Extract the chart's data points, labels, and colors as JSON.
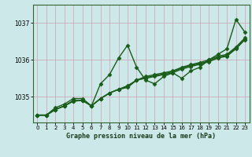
{
  "title": "Graphe pression niveau de la mer (hPa)",
  "bg_color": "#cce8e8",
  "grid_color": "#d0a0b0",
  "line_color": "#1a5c1a",
  "marker": "D",
  "markersize": 2.5,
  "linewidth": 1.0,
  "xlim": [
    -0.5,
    23.5
  ],
  "ylim": [
    1034.3,
    1037.5
  ],
  "yticks": [
    1035,
    1036,
    1037
  ],
  "xticks": [
    0,
    1,
    2,
    3,
    4,
    5,
    6,
    7,
    8,
    9,
    10,
    11,
    12,
    13,
    14,
    15,
    16,
    17,
    18,
    19,
    20,
    21,
    22,
    23
  ],
  "series": [
    [
      1034.5,
      1034.5,
      1034.7,
      1034.8,
      1034.95,
      1034.95,
      1034.75,
      1035.35,
      1035.6,
      1036.05,
      1036.4,
      1035.8,
      1035.45,
      1035.35,
      1035.55,
      1035.65,
      1035.5,
      1035.7,
      1035.8,
      1036.0,
      1036.15,
      1036.3,
      1037.1,
      1036.75
    ],
    [
      1034.5,
      1034.5,
      1034.65,
      1034.75,
      1034.9,
      1034.9,
      1034.75,
      1034.95,
      1035.1,
      1035.2,
      1035.25,
      1035.45,
      1035.5,
      1035.55,
      1035.6,
      1035.65,
      1035.75,
      1035.82,
      1035.88,
      1035.95,
      1036.05,
      1036.1,
      1036.3,
      1036.55
    ],
    [
      1034.5,
      1034.5,
      1034.65,
      1034.75,
      1034.88,
      1034.9,
      1034.75,
      1034.95,
      1035.1,
      1035.2,
      1035.3,
      1035.45,
      1035.55,
      1035.6,
      1035.65,
      1035.7,
      1035.8,
      1035.87,
      1035.93,
      1036.0,
      1036.1,
      1036.15,
      1036.35,
      1036.6
    ],
    [
      1034.5,
      1034.5,
      1034.65,
      1034.75,
      1034.88,
      1034.9,
      1034.75,
      1034.95,
      1035.1,
      1035.2,
      1035.28,
      1035.45,
      1035.52,
      1035.57,
      1035.62,
      1035.68,
      1035.78,
      1035.85,
      1035.9,
      1035.97,
      1036.07,
      1036.12,
      1036.32,
      1036.57
    ]
  ]
}
